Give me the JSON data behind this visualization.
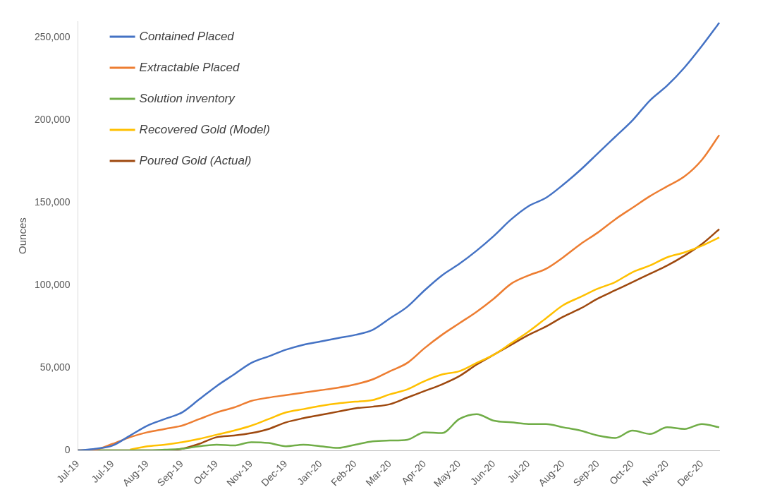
{
  "chart_data": {
    "type": "line",
    "ylabel": "Ounces",
    "categories": [
      "Jul-19",
      null,
      "Jul-19",
      null,
      "Aug-19",
      null,
      "Sep-19",
      null,
      "Oct-19",
      null,
      "Nov-19",
      null,
      "Dec-19",
      null,
      "Jan-20",
      null,
      "Feb-20",
      null,
      "Mar-20",
      null,
      "Apr-20",
      null,
      "May-20",
      null,
      "Jun-20",
      null,
      "Jul-20",
      null,
      "Aug-20",
      null,
      "Sep-20",
      null,
      "Oct-20",
      null,
      "Nov-20",
      null,
      "Dec-20",
      null
    ],
    "series": [
      {
        "name": "Contained Placed",
        "color": "#4472c4",
        "values": [
          0,
          1000,
          3000,
          9000,
          15000,
          19000,
          23000,
          31000,
          39000,
          46000,
          53000,
          57000,
          61000,
          64000,
          66000,
          68000,
          70000,
          73000,
          80000,
          87000,
          97000,
          106000,
          113000,
          121000,
          130000,
          140000,
          148000,
          153000,
          161000,
          170000,
          180000,
          190000,
          200000,
          212000,
          221000,
          232000,
          245000,
          259000
        ]
      },
      {
        "name": "Extractable Placed",
        "color": "#ed7d31",
        "values": [
          0,
          500,
          4000,
          8000,
          11000,
          13000,
          15000,
          19000,
          23000,
          26000,
          30000,
          32000,
          33500,
          35000,
          36500,
          38000,
          40000,
          43000,
          48000,
          53000,
          62000,
          70000,
          77000,
          84000,
          92000,
          101000,
          106000,
          110000,
          117000,
          125000,
          132000,
          140000,
          147000,
          154000,
          160000,
          166000,
          176000,
          191000
        ]
      },
      {
        "name": "Solution inventory",
        "color": "#70ad47",
        "values": [
          0,
          0,
          0,
          0,
          0,
          500,
          1000,
          2500,
          3500,
          3000,
          5000,
          4500,
          2500,
          3500,
          2500,
          1500,
          3500,
          5500,
          6000,
          6500,
          11000,
          10500,
          19000,
          22000,
          18000,
          17000,
          16000,
          16000,
          14000,
          12000,
          9000,
          7500,
          12000,
          10000,
          14000,
          13000,
          16000,
          14000
        ]
      },
      {
        "name": "Recovered Gold (Model)",
        "color": "#ffc000",
        "values": [
          null,
          null,
          null,
          500,
          2500,
          3500,
          5000,
          7000,
          9500,
          12000,
          15000,
          19000,
          23000,
          25000,
          27000,
          28500,
          29500,
          30500,
          34000,
          37000,
          42000,
          46000,
          48000,
          53000,
          58000,
          65000,
          72000,
          80000,
          88000,
          93000,
          98000,
          102000,
          108000,
          112000,
          117000,
          120000,
          124000,
          129000
        ]
      },
      {
        "name": "Poured Gold (Actual)",
        "color": "#9e480e",
        "values": [
          0,
          0,
          0,
          0,
          0,
          0,
          1000,
          4000,
          8000,
          9000,
          10500,
          13000,
          17000,
          19500,
          21500,
          23500,
          25500,
          26500,
          28000,
          32000,
          36000,
          40000,
          45000,
          52000,
          58000,
          64000,
          70000,
          75000,
          81000,
          86000,
          92000,
          97000,
          102000,
          107000,
          112000,
          118000,
          125000,
          134000
        ]
      }
    ],
    "ylim": [
      0,
      260000
    ],
    "yticks": [
      0,
      {
        "value": 50000,
        "label": "50,000"
      },
      {
        "value": 100000,
        "label": "100,000"
      },
      {
        "value": 150000,
        "label": "150,000"
      },
      {
        "value": 200000,
        "label": "200,000"
      },
      {
        "value": 250000,
        "label": "250,000"
      }
    ],
    "legend": "top left",
    "grid": false,
    "marker": "none",
    "line_style": "solid"
  }
}
